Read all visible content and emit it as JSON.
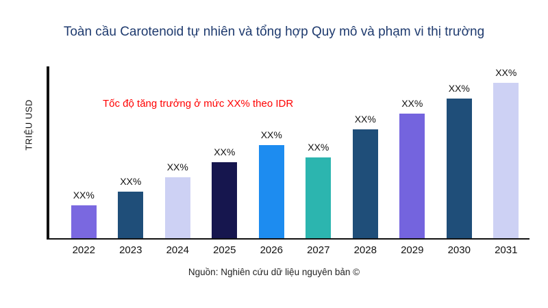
{
  "title": "Toàn cầu Carotenoid tự nhiên và tổng hợp Quy mô và phạm vi thị trường",
  "annotation": "Tốc độ tăng trưởng ở mức XX% theo IDR",
  "y_axis_label": "TRIỆU USD",
  "source": "Nguồn: Nghiên cứu dữ liệu nguyên bản ©",
  "chart_data": {
    "type": "bar",
    "title": "Toàn cầu Carotenoid tự nhiên và tổng hợp Quy mô và phạm vi thị trường",
    "xlabel": "",
    "ylabel": "TRIỆU USD",
    "categories": [
      "2022",
      "2023",
      "2024",
      "2025",
      "2026",
      "2027",
      "2028",
      "2029",
      "2030",
      "2031"
    ],
    "values": [
      21,
      30,
      39,
      49,
      60,
      52,
      70,
      80,
      90,
      100
    ],
    "value_note": "relative bar heights, max = 100; actual values not shown in chart",
    "data_labels": [
      "XX%",
      "XX%",
      "XX%",
      "XX%",
      "XX%",
      "XX%",
      "XX%",
      "XX%",
      "XX%",
      "XX%"
    ],
    "bar_colors": [
      "#7a68e0",
      "#1f4e79",
      "#cdd1f4",
      "#16164e",
      "#1d8cf0",
      "#2cb5af",
      "#1f4e79",
      "#7464de",
      "#1f4e79",
      "#cdd1f4"
    ],
    "annotation": "Tốc độ tăng trưởng ở mức XX% theo IDR",
    "annotation_color": "#ff0000",
    "title_color": "#1e3a6e",
    "grid": false,
    "legend": false,
    "ylim": [
      0,
      110
    ]
  }
}
